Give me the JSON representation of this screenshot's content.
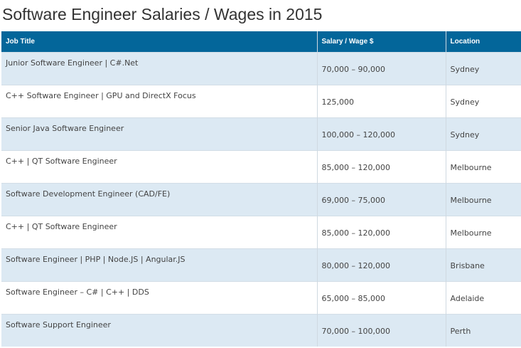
{
  "page_title": "Software Engineer Salaries / Wages in 2015",
  "table": {
    "headers": {
      "job_title": "Job Title",
      "salary": "Salary / Wage $",
      "location": "Location"
    },
    "rows": [
      {
        "job_title": "Junior Software Engineer | C#.Net",
        "salary": "70,000 – 90,000",
        "location": "Sydney"
      },
      {
        "job_title": "C++ Software Engineer | GPU and DirectX Focus",
        "salary": "125,000",
        "location": "Sydney"
      },
      {
        "job_title": "Senior Java Software Engineer",
        "salary": "100,000 – 120,000",
        "location": "Sydney"
      },
      {
        "job_title": "C++ | QT Software Engineer",
        "salary": "85,000 – 120,000",
        "location": "Melbourne"
      },
      {
        "job_title": "Software Development Engineer (CAD/FE)",
        "salary": "69,000 – 75,000",
        "location": "Melbourne"
      },
      {
        "job_title": "C++ | QT Software Engineer",
        "salary": "85,000 – 120,000",
        "location": "Melbourne"
      },
      {
        "job_title": "Software Engineer | PHP | Node.JS | Angular.JS",
        "salary": "80,000 – 120,000",
        "location": "Brisbane"
      },
      {
        "job_title": "Software Engineer – C# | C++ | DDS",
        "salary": "65,000 – 85,000",
        "location": "Adelaide"
      },
      {
        "job_title": "Software Support Engineer",
        "salary": "70,000 – 100,000",
        "location": "Perth"
      }
    ]
  },
  "colors": {
    "header_background": "#03669a",
    "header_text": "#ffffff",
    "row_stripe": "#dce9f3",
    "body_text": "#444444",
    "title_text": "#333333"
  }
}
